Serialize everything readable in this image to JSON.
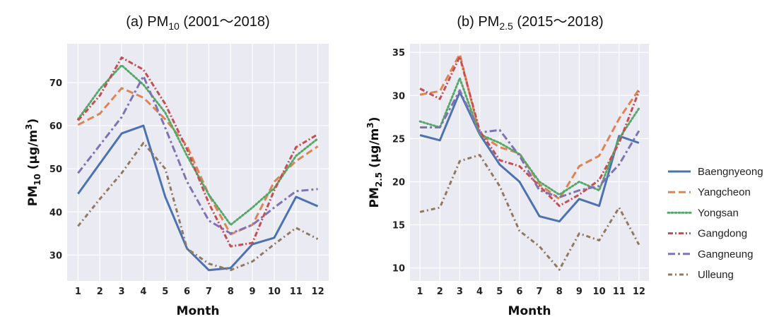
{
  "chart_data": [
    {
      "type": "line",
      "title": "(a) PM10 (2001~2018)",
      "title_prefix": "(a) PM",
      "title_sub": "10",
      "title_suffix": " (2001～2018)",
      "xlabel": "Month",
      "ylabel": "PM10 (µg/m3)",
      "ylabel_base": "PM",
      "ylabel_sub": "10",
      "ylabel_unit": " (µg/m",
      "ylabel_sup": "3",
      "ylabel_close": ")",
      "x": [
        1,
        2,
        3,
        4,
        5,
        6,
        7,
        8,
        9,
        10,
        11,
        12
      ],
      "x_tick_labels": [
        "1",
        "2",
        "3",
        "4",
        "5",
        "6",
        "7",
        "8",
        "9",
        "10",
        "11",
        "12"
      ],
      "xlim": [
        0.5,
        12.5
      ],
      "ylim": [
        24,
        79
      ],
      "yticks": [
        30,
        40,
        50,
        60,
        70
      ],
      "y_tick_labels": [
        "30",
        "40",
        "50",
        "60",
        "70"
      ],
      "grid": true,
      "series": [
        {
          "name": "Baengnyeong",
          "values": [
            44.2,
            51.2,
            58.2,
            60.0,
            43.5,
            31.5,
            26.5,
            27.0,
            32.5,
            34.0,
            43.5,
            41.3
          ]
        },
        {
          "name": "Yangcheon",
          "values": [
            60.2,
            62.8,
            68.7,
            66.5,
            61.5,
            55.3,
            44.0,
            34.8,
            37.0,
            47.0,
            51.8,
            55.2
          ]
        },
        {
          "name": "Yongsan",
          "values": [
            61.5,
            68.5,
            74.0,
            69.5,
            63.0,
            53.0,
            44.0,
            37.0,
            41.0,
            45.5,
            53.0,
            57.0
          ]
        },
        {
          "name": "Gangdong",
          "values": [
            61.2,
            67.0,
            75.8,
            73.0,
            65.0,
            54.5,
            42.0,
            32.0,
            32.8,
            45.0,
            55.0,
            58.0
          ]
        },
        {
          "name": "Gangneung",
          "values": [
            49.0,
            55.5,
            62.0,
            71.5,
            59.5,
            47.0,
            38.0,
            35.0,
            37.0,
            41.0,
            44.8,
            45.3
          ]
        },
        {
          "name": "Ulleung",
          "values": [
            36.7,
            43.0,
            49.0,
            56.0,
            50.0,
            31.5,
            28.0,
            26.5,
            28.5,
            32.5,
            36.3,
            33.7
          ]
        }
      ]
    },
    {
      "type": "line",
      "title": "(b) PM2.5 (2015~2018)",
      "title_prefix": "(b) PM",
      "title_sub": "2.5",
      "title_suffix": " (2015～2018)",
      "xlabel": "Month",
      "ylabel": "PM2.5 (µg/m3)",
      "ylabel_base": "PM",
      "ylabel_sub": "2.5",
      "ylabel_unit": " (µg/m",
      "ylabel_sup": "3",
      "ylabel_close": ")",
      "x": [
        1,
        2,
        3,
        4,
        5,
        6,
        7,
        8,
        9,
        10,
        11,
        12
      ],
      "x_tick_labels": [
        "1",
        "2",
        "3",
        "4",
        "5",
        "6",
        "7",
        "8",
        "9",
        "10",
        "11",
        "12"
      ],
      "xlim": [
        0.5,
        12.5
      ],
      "ylim": [
        8.5,
        36
      ],
      "yticks": [
        10,
        15,
        20,
        25,
        30,
        35
      ],
      "y_tick_labels": [
        "10",
        "15",
        "20",
        "25",
        "30",
        "35"
      ],
      "grid": true,
      "series": [
        {
          "name": "Baengnyeong",
          "values": [
            25.4,
            24.8,
            30.4,
            25.5,
            22.0,
            20.0,
            16.0,
            15.4,
            18.0,
            17.2,
            25.3,
            24.5
          ]
        },
        {
          "name": "Yangcheon",
          "values": [
            30.1,
            30.5,
            34.8,
            25.5,
            24.0,
            23.3,
            19.7,
            18.0,
            21.8,
            23.0,
            27.3,
            30.7
          ]
        },
        {
          "name": "Yongsan",
          "values": [
            27.0,
            26.3,
            32.0,
            25.5,
            24.5,
            23.2,
            20.0,
            18.5,
            20.0,
            19.0,
            25.0,
            28.5
          ]
        },
        {
          "name": "Gangdong",
          "values": [
            30.8,
            29.6,
            34.5,
            25.9,
            22.5,
            21.8,
            19.5,
            17.2,
            18.5,
            20.2,
            24.5,
            30.5
          ]
        },
        {
          "name": "Gangneung",
          "values": [
            26.3,
            26.3,
            30.6,
            25.7,
            26.0,
            23.0,
            19.0,
            18.2,
            19.0,
            19.5,
            22.0,
            25.9
          ]
        },
        {
          "name": "Ulleung",
          "values": [
            16.5,
            17.0,
            22.4,
            23.1,
            19.5,
            14.3,
            12.5,
            9.8,
            14.0,
            13.2,
            17.0,
            12.7
          ]
        }
      ]
    }
  ],
  "legend": {
    "placement": "right",
    "items": [
      {
        "name": "Baengnyeong",
        "color": "#4c72b0",
        "dash": "solid"
      },
      {
        "name": "Yangcheon",
        "color": "#dd8452",
        "dash": "dashed"
      },
      {
        "name": "Yongsan",
        "color": "#55a868",
        "dash": "dotted"
      },
      {
        "name": "Gangdong",
        "color": "#c44e52",
        "dash": "dashdot"
      },
      {
        "name": "Gangneung",
        "color": "#8172b3",
        "dash": "dashdot-long"
      },
      {
        "name": "Ulleung",
        "color": "#937860",
        "dash": "dashdot-short"
      }
    ]
  },
  "style": {
    "plot_background": "#eaeaf2",
    "grid_color": "#ffffff"
  }
}
